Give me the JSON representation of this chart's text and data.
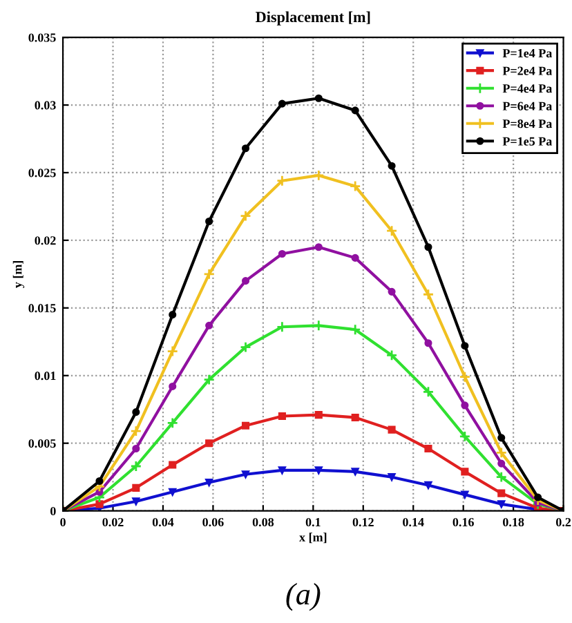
{
  "chart_data": {
    "type": "line",
    "title": "Displacement [m]",
    "xlabel": "x [m]",
    "ylabel": "y [m]",
    "x": [
      0,
      0.0146,
      0.0292,
      0.0438,
      0.0584,
      0.073,
      0.0876,
      0.1022,
      0.1168,
      0.1314,
      0.146,
      0.1606,
      0.1752,
      0.1898,
      0.2
    ],
    "series": [
      {
        "name": "P=1e4 Pa",
        "color": "#1010d0",
        "marker": "triangle",
        "values": [
          0,
          0.0002,
          0.0007,
          0.0014,
          0.0021,
          0.0027,
          0.003,
          0.003,
          0.0029,
          0.0025,
          0.0019,
          0.0012,
          0.0005,
          0.0001,
          0
        ]
      },
      {
        "name": "P=2e4 Pa",
        "color": "#e02020",
        "marker": "square",
        "values": [
          0,
          0.0005,
          0.0017,
          0.0034,
          0.005,
          0.0063,
          0.007,
          0.0071,
          0.0069,
          0.006,
          0.0046,
          0.0029,
          0.0013,
          0.0002,
          0
        ]
      },
      {
        "name": "P=4e4 Pa",
        "color": "#30e030",
        "marker": "cross",
        "values": [
          0,
          0.001,
          0.0033,
          0.0065,
          0.0097,
          0.0121,
          0.0136,
          0.0137,
          0.0134,
          0.0115,
          0.0088,
          0.0055,
          0.0025,
          0.0005,
          0
        ]
      },
      {
        "name": "P=6e4 Pa",
        "color": "#9010a0",
        "marker": "circle",
        "values": [
          0,
          0.0014,
          0.0046,
          0.0092,
          0.0137,
          0.017,
          0.019,
          0.0195,
          0.0187,
          0.0162,
          0.0124,
          0.0078,
          0.0035,
          0.0006,
          0
        ]
      },
      {
        "name": "P=8e4 Pa",
        "color": "#f0c020",
        "marker": "cross",
        "values": [
          0,
          0.0018,
          0.0059,
          0.0118,
          0.0175,
          0.0218,
          0.0244,
          0.0248,
          0.024,
          0.0207,
          0.016,
          0.0099,
          0.0043,
          0.0008,
          0
        ]
      },
      {
        "name": "P=1e5 Pa",
        "color": "#000000",
        "marker": "circle",
        "values": [
          0,
          0.0022,
          0.0073,
          0.0145,
          0.0214,
          0.0268,
          0.0301,
          0.0305,
          0.0296,
          0.0255,
          0.0195,
          0.0122,
          0.0054,
          0.001,
          0
        ]
      }
    ],
    "xlim": [
      0,
      0.2
    ],
    "xticks": [
      0,
      0.02,
      0.04,
      0.06,
      0.08,
      0.1,
      0.12,
      0.14,
      0.16,
      0.18,
      0.2
    ],
    "ylim": [
      0,
      0.035
    ],
    "yticks": [
      0,
      0.005,
      0.01,
      0.015,
      0.02,
      0.025,
      0.03,
      0.035
    ],
    "grid": true,
    "legend": "top right",
    "line_style": "solid",
    "annotations": [
      "(a)"
    ]
  }
}
